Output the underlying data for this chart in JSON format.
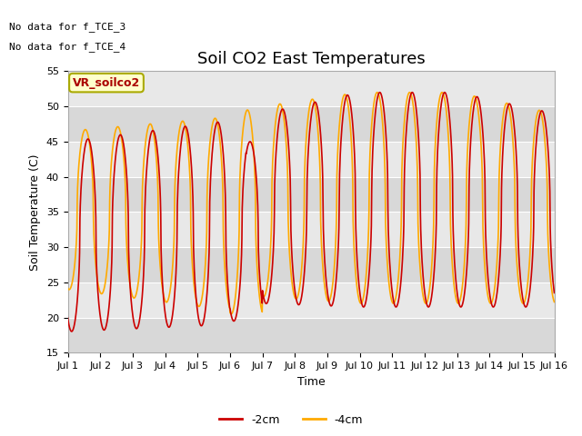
{
  "title": "Soil CO2 East Temperatures",
  "xlabel": "Time",
  "ylabel": "Soil Temperature (C)",
  "ylim": [
    15,
    55
  ],
  "xlim_days": [
    1,
    16
  ],
  "yticks": [
    15,
    20,
    25,
    30,
    35,
    40,
    45,
    50,
    55
  ],
  "xtick_labels": [
    "Jul 1",
    "Jul 2",
    "Jul 3",
    "Jul 4",
    "Jul 5",
    "Jul 6",
    "Jul 7",
    "Jul 8",
    "Jul 9",
    "Jul 10",
    "Jul 11",
    "Jul 12",
    "Jul 13",
    "Jul 14",
    "Jul 15",
    "Jul 16"
  ],
  "color_2cm": "#cc0000",
  "color_4cm": "#ffaa00",
  "no_data_text_1": "No data for f_TCE_3",
  "no_data_text_2": "No data for f_TCE_4",
  "legend_label": "VR_soilco2",
  "legend_2cm": "-2cm",
  "legend_4cm": "-4cm",
  "bg_color": "#e8e8e8",
  "title_fontsize": 13,
  "axis_label_fontsize": 9,
  "tick_fontsize": 8,
  "linewidth": 1.2
}
